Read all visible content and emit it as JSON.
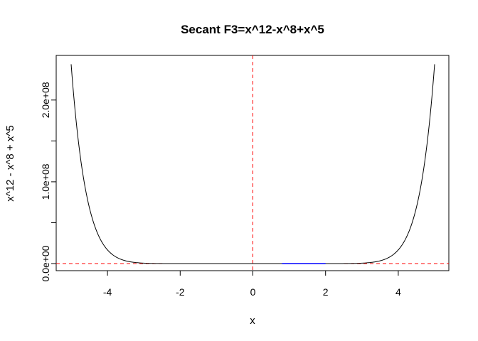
{
  "chart_data": {
    "type": "line",
    "title": "Secant F3=x^12-x^8+x^5",
    "xlabel": "x",
    "ylabel": "x^12 - x^8 + x^5",
    "function": "x^12 - x^8 + x^5",
    "xlim": [
      -5,
      5
    ],
    "ylim": [
      0,
      244140625
    ],
    "x_ticks": [
      -4,
      -2,
      0,
      2,
      4
    ],
    "x_tick_labels": [
      "-4",
      "-2",
      "0",
      "2",
      "4"
    ],
    "y_ticks": [
      0,
      50000000,
      100000000,
      150000000,
      200000000
    ],
    "y_tick_labels": [
      "0.0e+00",
      "",
      "1.0e+08",
      "",
      "2.0e+08"
    ],
    "series": [
      {
        "x": [
          -5,
          -4.5,
          -4,
          -3.75,
          -3.5,
          -3.25,
          -3,
          -2.5,
          -2,
          -1,
          0,
          1,
          2,
          2.5,
          3,
          3.25,
          3.5,
          3.75,
          4,
          4.5,
          5
        ],
        "y": [
          244140625,
          68025280,
          16711680,
          7569000,
          3223000,
          1270000,
          455000,
          55000,
          3850,
          1,
          0,
          1,
          3872,
          55000,
          467000,
          1273000,
          3225000,
          7569000,
          16712704,
          68025300,
          244140625
        ],
        "color": "#000000"
      },
      {
        "x": [
          0.8,
          1.2,
          1.6,
          2.0
        ],
        "y": [
          0,
          0,
          0,
          0
        ],
        "color": "#0000ff"
      }
    ],
    "reference_lines": [
      {
        "orientation": "vertical",
        "value": 0,
        "color": "#ff0000",
        "style": "dashed"
      },
      {
        "orientation": "horizontal",
        "value": 0,
        "color": "#ff0000",
        "style": "dashed"
      }
    ],
    "grid": false,
    "legend": "none"
  }
}
